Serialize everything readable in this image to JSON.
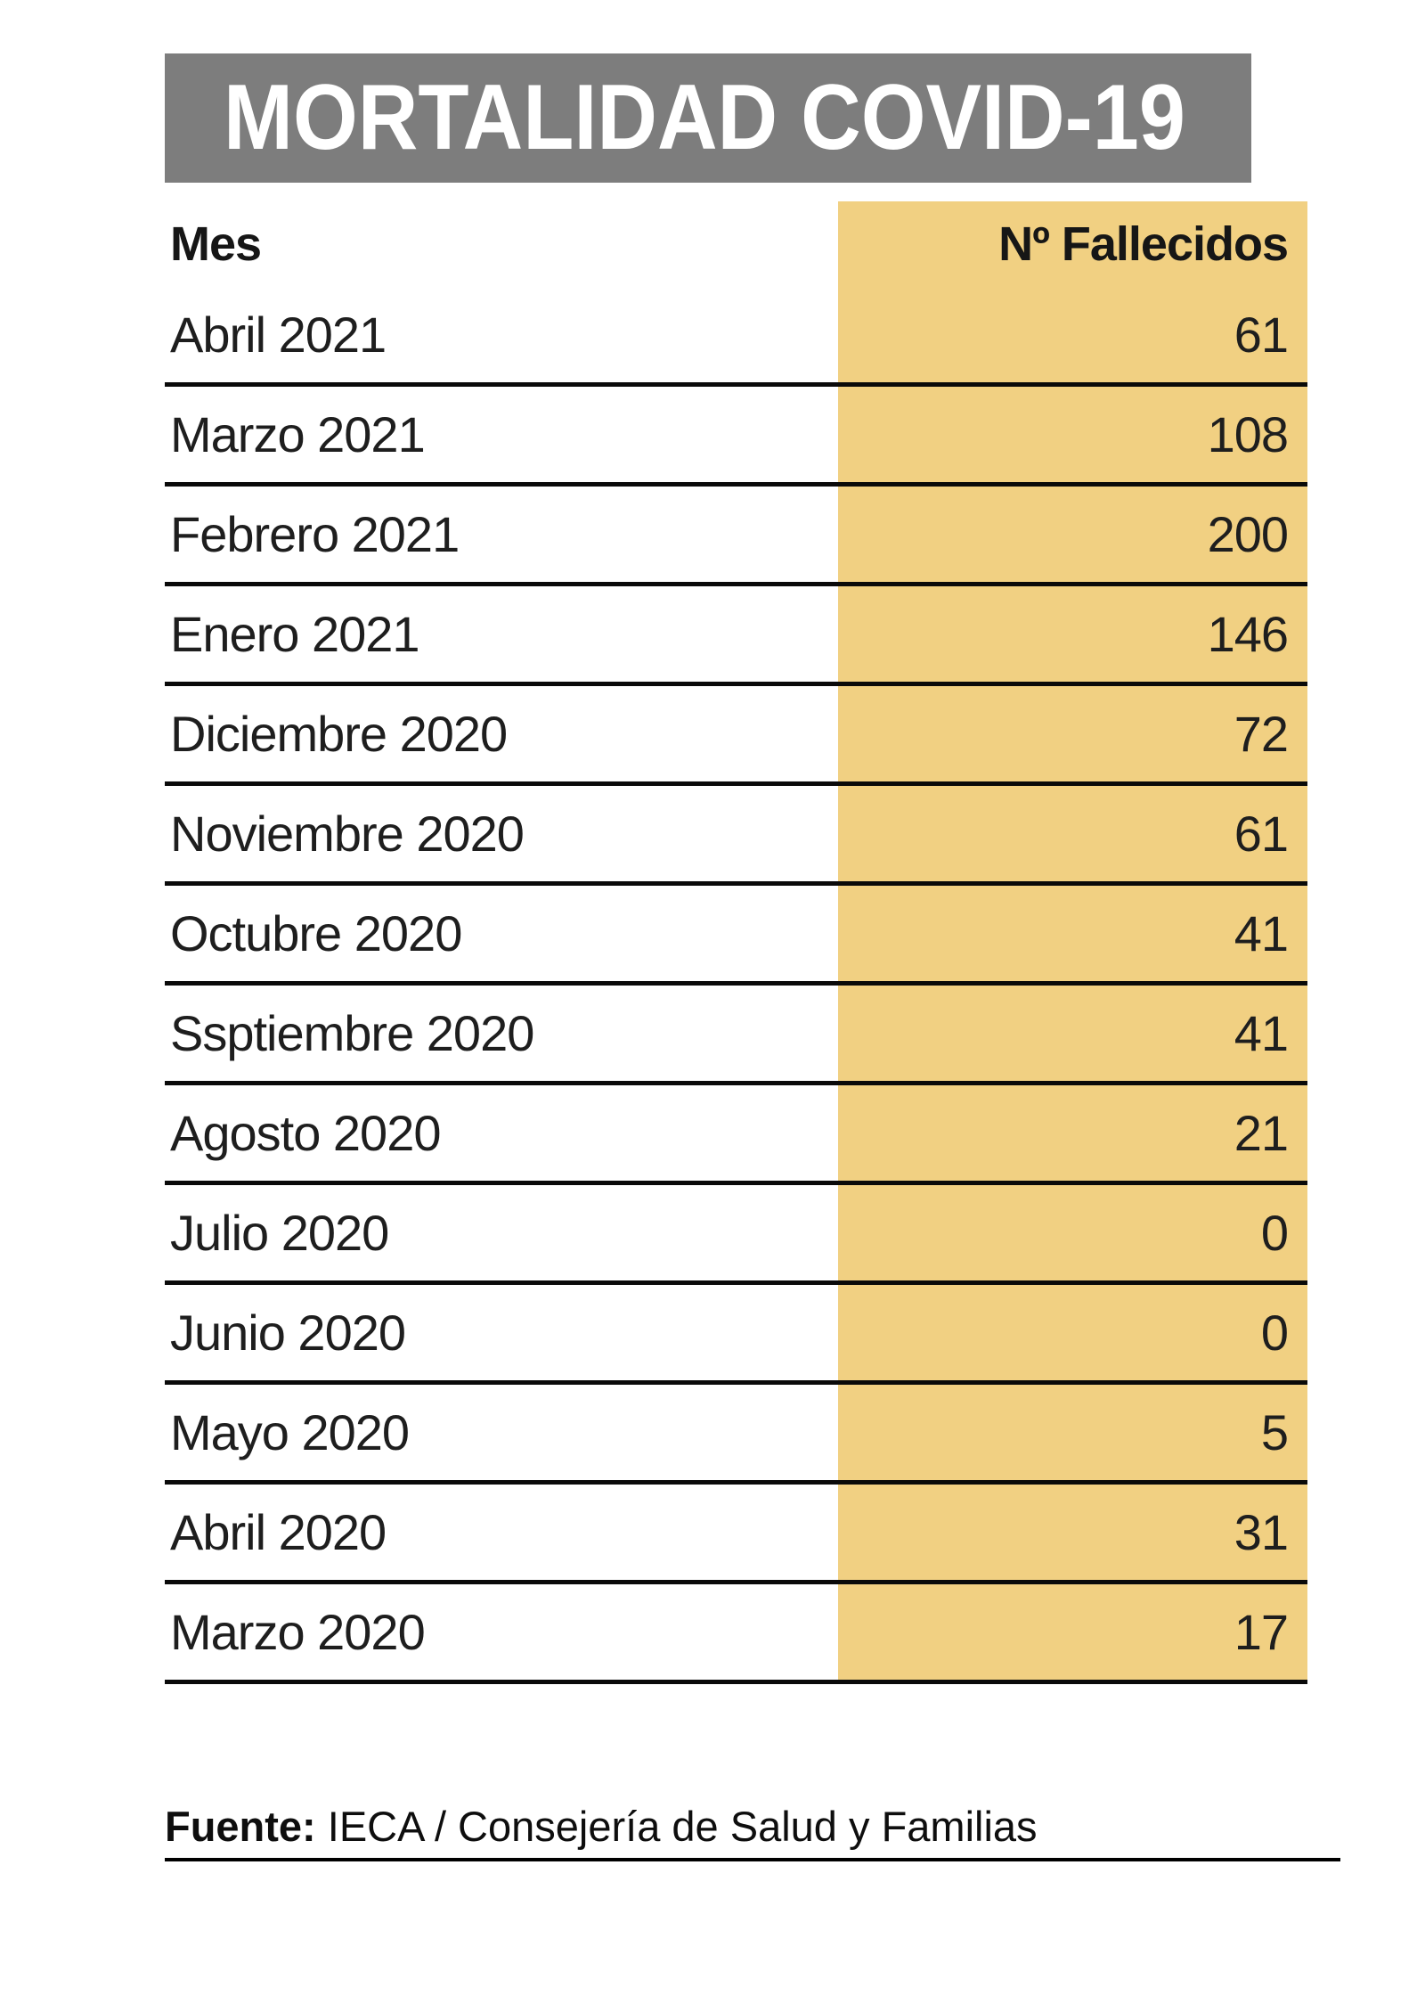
{
  "title": "MORTALIDAD COVID-19",
  "table": {
    "col_month": "Mes",
    "col_deaths": "Nº Fallecidos",
    "rows": [
      {
        "month": "Abril 2021",
        "deaths": "61"
      },
      {
        "month": "Marzo 2021",
        "deaths": "108"
      },
      {
        "month": "Febrero 2021",
        "deaths": "200"
      },
      {
        "month": "Enero 2021",
        "deaths": "146"
      },
      {
        "month": "Diciembre 2020",
        "deaths": "72"
      },
      {
        "month": "Noviembre 2020",
        "deaths": "61"
      },
      {
        "month": "Octubre 2020",
        "deaths": "41"
      },
      {
        "month": "Ssptiembre 2020",
        "deaths": "41"
      },
      {
        "month": "Agosto 2020",
        "deaths": "21"
      },
      {
        "month": "Julio 2020",
        "deaths": "0"
      },
      {
        "month": "Junio 2020",
        "deaths": "0"
      },
      {
        "month": "Mayo 2020",
        "deaths": "5"
      },
      {
        "month": "Abril 2020",
        "deaths": "31"
      },
      {
        "month": "Marzo 2020",
        "deaths": "17"
      }
    ]
  },
  "source": {
    "label": "Fuente:",
    "text": " IECA / Consejería de Salud y Familias"
  },
  "colors": {
    "banner_gray": "#7d7d7d",
    "highlight_yellow": "#f1d082",
    "line_black": "#0a0a0a"
  },
  "chart_data": {
    "type": "table",
    "title": "MORTALIDAD COVID-19",
    "columns": [
      "Mes",
      "Nº Fallecidos"
    ],
    "categories": [
      "Abril 2021",
      "Marzo 2021",
      "Febrero 2021",
      "Enero 2021",
      "Diciembre 2020",
      "Noviembre 2020",
      "Octubre 2020",
      "Ssptiembre 2020",
      "Agosto 2020",
      "Julio 2020",
      "Junio 2020",
      "Mayo 2020",
      "Abril 2020",
      "Marzo 2020"
    ],
    "values": [
      61,
      108,
      200,
      146,
      72,
      61,
      41,
      41,
      21,
      0,
      0,
      5,
      31,
      17
    ],
    "source": "Fuente: IECA / Consejería de Salud y Familias",
    "layout": "single highlighted value column, right-aligned numbers, thick black row separators"
  }
}
